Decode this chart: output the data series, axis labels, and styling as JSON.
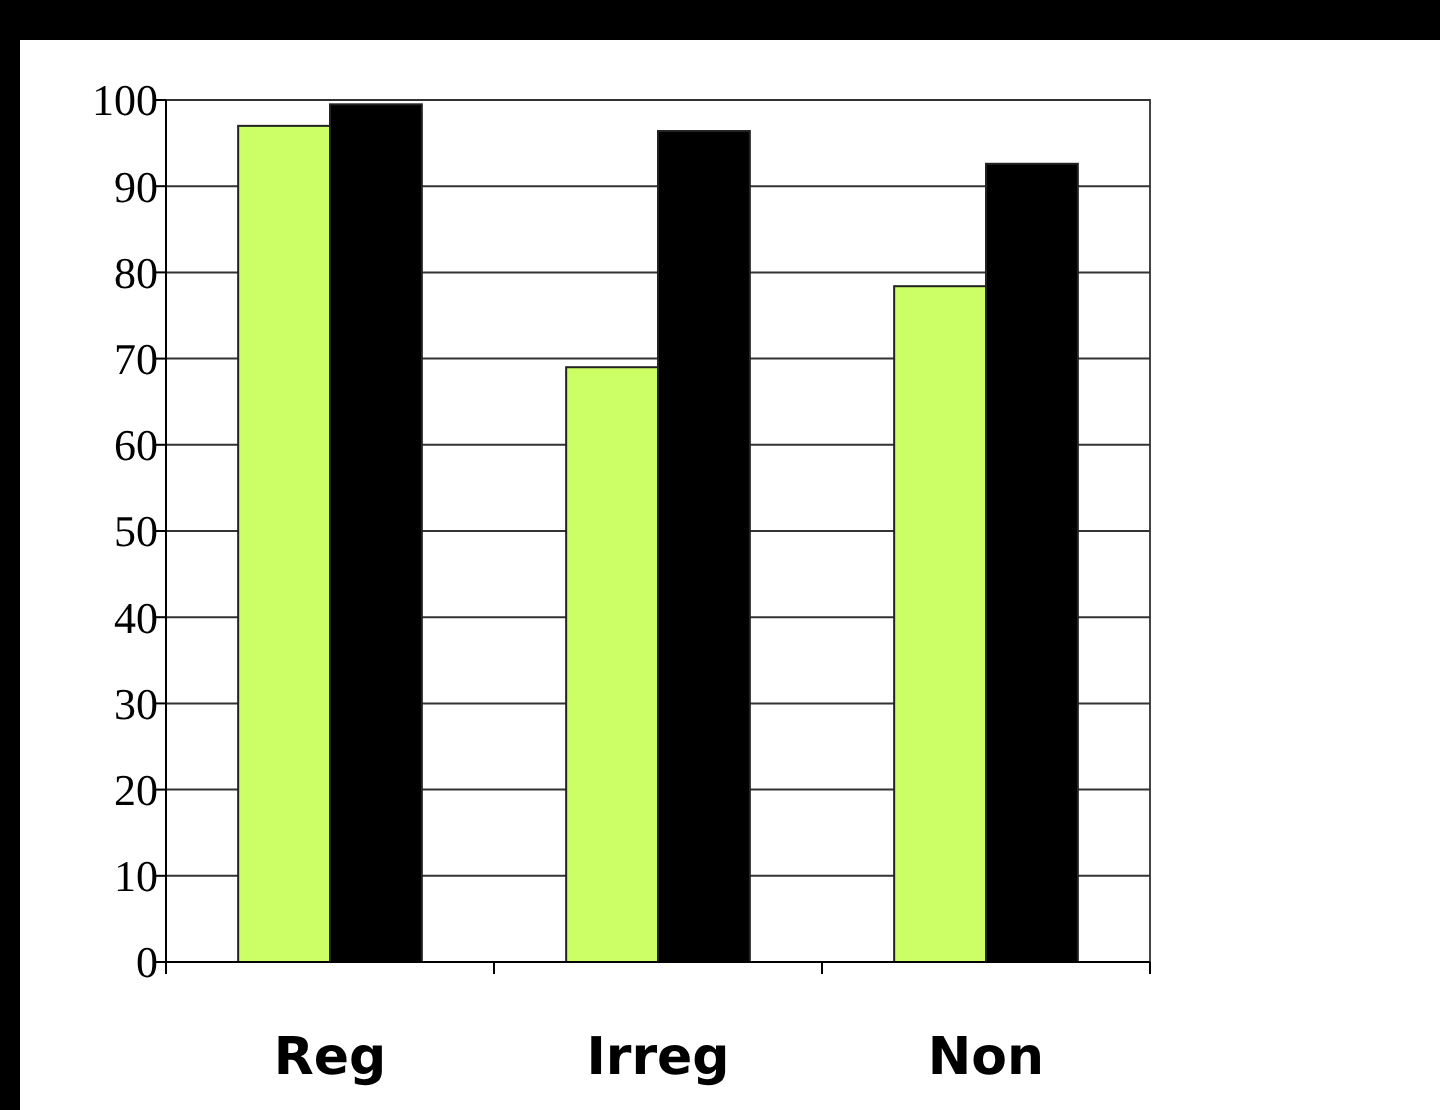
{
  "chart_data": {
    "type": "bar",
    "categories": [
      "Reg",
      "Irreg",
      "Non"
    ],
    "series": [
      {
        "color": "#ccff66",
        "values": [
          97,
          69,
          78.4
        ]
      },
      {
        "color": "#000000",
        "values": [
          99.5,
          96.4,
          92.6
        ]
      }
    ],
    "ylim": [
      0,
      100
    ],
    "yticks": [
      0,
      10,
      20,
      30,
      40,
      50,
      60,
      70,
      80,
      90,
      100
    ],
    "grid": "y"
  }
}
